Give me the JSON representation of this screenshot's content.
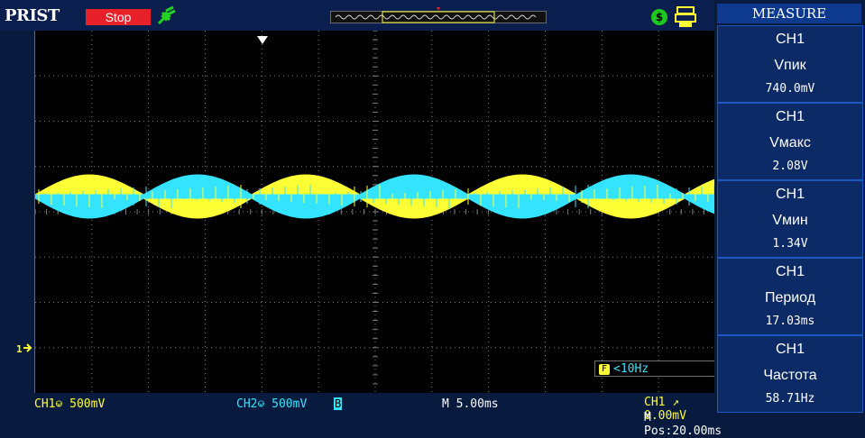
{
  "header": {
    "brand": "PRIST",
    "run_state": "Stop"
  },
  "measure": {
    "title": "MEASURE",
    "items": [
      {
        "channel": "CH1",
        "name": "Vпик",
        "value": "740.0mV"
      },
      {
        "channel": "CH1",
        "name": "Vмакс",
        "value": "2.08V"
      },
      {
        "channel": "CH1",
        "name": "Vмин",
        "value": "1.34V"
      },
      {
        "channel": "CH1",
        "name": "Период",
        "value": "17.03ms"
      },
      {
        "channel": "CH1",
        "name": "Частота",
        "value": "58.71Hz"
      }
    ]
  },
  "trigger_box": {
    "text": "<10Hz"
  },
  "status": {
    "ch1": "CH1⎉ 500mV",
    "ch2": "CH2⎉ 500mV",
    "ch2_flag": "B",
    "timebase": "M 5.00ms",
    "trigger": "CH1 ↗ 0.00mV",
    "mpos": "M Pos:20.00ms"
  },
  "colors": {
    "ch1": "#ffff36",
    "ch2": "#34e4ff",
    "grid": "#7a7a7a",
    "menu_accent": "#1c58c4"
  }
}
